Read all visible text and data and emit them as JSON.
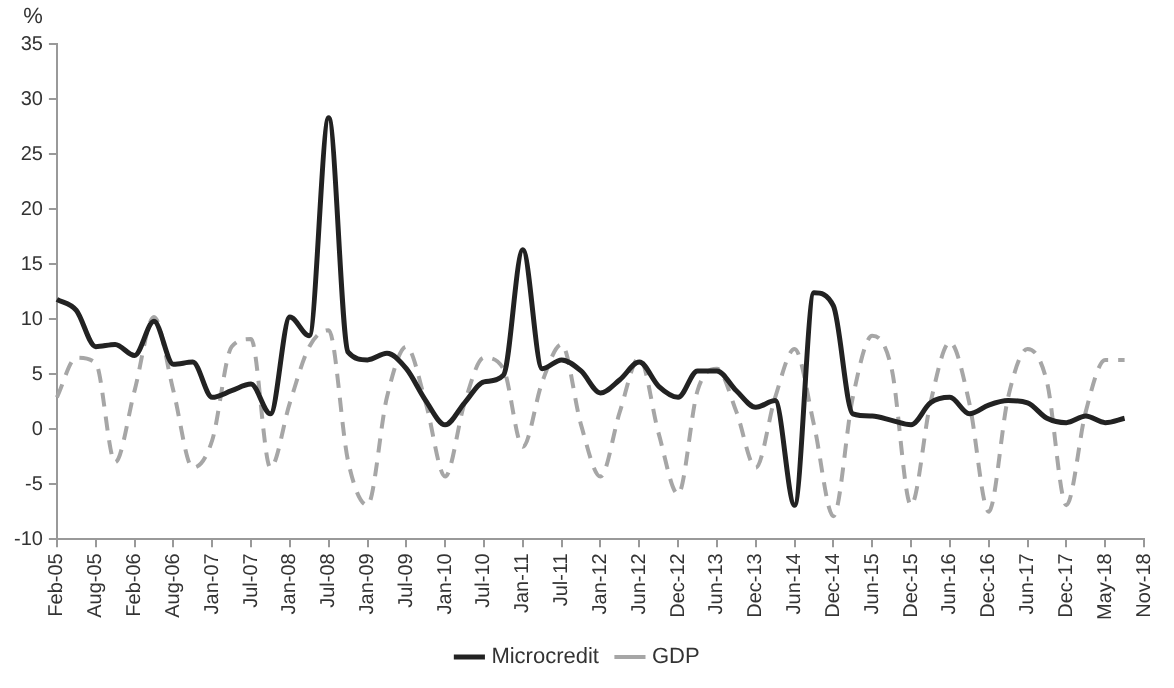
{
  "chart_data": {
    "type": "line",
    "ylabel": "%",
    "categories": [
      "Feb-05",
      null,
      "Aug-05",
      null,
      "Feb-06",
      null,
      "Aug-06",
      null,
      "Jan-07",
      null,
      "Jul-07",
      null,
      "Jan-08",
      null,
      "Jul-08",
      null,
      "Jan-09",
      null,
      "Jul-09",
      null,
      "Jan-10",
      null,
      "Jul-10",
      null,
      "Jan-11",
      null,
      "Jul-11",
      null,
      "Jan-12",
      null,
      "Jun-12",
      null,
      "Dec-12",
      null,
      "Jun-13",
      null,
      "Dec-13",
      null,
      "Jun-14",
      null,
      "Dec-14",
      null,
      "Jun-15",
      null,
      "Dec-15",
      null,
      "Jun-16",
      null,
      "Dec-16",
      null,
      "Jun-17",
      null,
      "Dec-17",
      null,
      "May-18",
      null,
      "Nov-18"
    ],
    "series": [
      {
        "name": "Microcredit",
        "color": "#222222",
        "line_style": "solid",
        "values": [
          11.8,
          10.8,
          7.5,
          7.7,
          6.7,
          9.8,
          5.9,
          6.1,
          2.9,
          3.5,
          4.1,
          1.4,
          10.2,
          8.5,
          28.3,
          7,
          6.3,
          6.9,
          5.5,
          2.6,
          0.4,
          2.4,
          4.3,
          4.9,
          16.3,
          5.5,
          6.3,
          5.3,
          3.3,
          4.5,
          6.1,
          3.9,
          2.9,
          5.3,
          5.3,
          3.5,
          2,
          2.6,
          -6.9,
          12.4,
          11.2,
          1.4,
          1.2,
          0.8,
          0.4,
          2.4,
          2.9,
          1.4,
          2.2,
          2.6,
          2.4,
          1,
          0.6,
          1.2,
          0.6,
          1,
          null
        ]
      },
      {
        "name": "GDP",
        "color": "#a6a6a6",
        "line_style": "dashed",
        "values": [
          2.9,
          6.5,
          6,
          -3,
          3.5,
          10.2,
          3.5,
          -3.5,
          -1,
          7.5,
          8.2,
          -3.5,
          2.4,
          7.5,
          9,
          -2.9,
          -6.9,
          2.9,
          7.5,
          2.4,
          -4.3,
          2.4,
          6.5,
          5.5,
          -1.6,
          4.3,
          7.7,
          0.4,
          -4.3,
          1.6,
          6.5,
          -0.4,
          -5.9,
          3.5,
          5.5,
          1.6,
          -3.5,
          2.9,
          7.3,
          0.4,
          -7.9,
          2.9,
          8.5,
          5.5,
          -6.9,
          2.4,
          7.9,
          2.4,
          -7.5,
          2.9,
          7.3,
          4.3,
          -6.9,
          1.6,
          6.3,
          6.3,
          null
        ]
      }
    ],
    "ylim": [
      -10,
      35
    ],
    "yticks": [
      -10,
      -5,
      0,
      5,
      10,
      15,
      20,
      25,
      30,
      35
    ],
    "grid": false,
    "legend": "bottom",
    "marker": "none"
  }
}
